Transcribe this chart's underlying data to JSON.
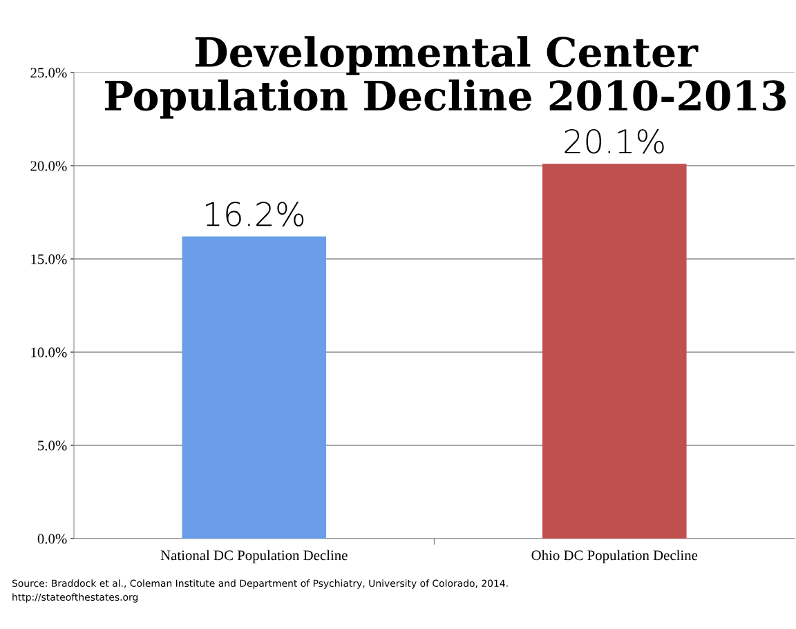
{
  "chart_data": {
    "type": "bar",
    "title": "Developmental Center\nPopulation Decline 2010-2013",
    "categories": [
      "National DC Population Decline",
      "Ohio DC Population Decline"
    ],
    "values": [
      16.2,
      20.1
    ],
    "colors": [
      "#6a9ee8",
      "#c0504d"
    ],
    "value_labels": [
      "16.2%",
      "20.1%"
    ],
    "ylim": [
      0,
      25
    ],
    "yticks": [
      {
        "value": 0,
        "label": "0.0%"
      },
      {
        "value": 5,
        "label": "5.0%"
      },
      {
        "value": 10,
        "label": "10.0%"
      },
      {
        "value": 15,
        "label": "15.0%"
      },
      {
        "value": 20,
        "label": "20.0%"
      },
      {
        "value": 25,
        "label": "25.0%"
      }
    ],
    "grid": "y",
    "legend": false,
    "annotations": [
      "Source: Braddock et al., Coleman Institute and Department of Psychiatry, University of Colorado, 2014.",
      "http://stateofthestates.org"
    ]
  }
}
